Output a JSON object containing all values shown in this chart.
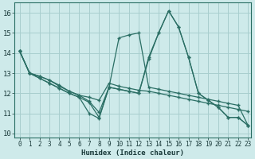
{
  "xlabel": "Humidex (Indice chaleur)",
  "xlim": [
    -0.5,
    23.3
  ],
  "ylim": [
    9.8,
    16.5
  ],
  "yticks": [
    10,
    11,
    12,
    13,
    14,
    15,
    16
  ],
  "xticks": [
    0,
    1,
    2,
    3,
    4,
    5,
    6,
    7,
    8,
    9,
    10,
    11,
    12,
    13,
    14,
    15,
    16,
    17,
    18,
    19,
    20,
    21,
    22,
    23
  ],
  "background_color": "#ceeaea",
  "grid_color": "#a8cece",
  "line_color": "#2a6e64",
  "series": [
    [
      14.1,
      13.0,
      12.85,
      12.65,
      12.35,
      12.1,
      11.9,
      11.8,
      11.65,
      12.5,
      12.35,
      12.25,
      12.15,
      12.1,
      12.0,
      11.9,
      11.8,
      11.7,
      11.6,
      11.5,
      11.4,
      11.3,
      11.2,
      11.1
    ],
    [
      14.1,
      13.0,
      12.75,
      12.5,
      12.25,
      12.0,
      11.8,
      11.55,
      10.8,
      12.3,
      14.75,
      14.9,
      15.0,
      12.3,
      12.2,
      12.1,
      12.0,
      11.9,
      11.8,
      11.7,
      11.6,
      11.5,
      11.4,
      10.4
    ],
    [
      14.1,
      13.0,
      12.75,
      12.5,
      12.25,
      12.0,
      11.8,
      11.0,
      10.75,
      12.3,
      12.2,
      12.1,
      12.0,
      13.8,
      15.0,
      16.1,
      15.3,
      13.8,
      12.0,
      11.65,
      11.3,
      10.8,
      10.8,
      10.4
    ],
    [
      14.1,
      13.0,
      12.85,
      12.65,
      12.4,
      12.1,
      11.9,
      11.6,
      11.05,
      12.3,
      12.2,
      12.1,
      12.0,
      13.7,
      15.0,
      16.1,
      15.3,
      13.8,
      12.0,
      11.65,
      11.3,
      10.8,
      10.8,
      10.4
    ]
  ]
}
